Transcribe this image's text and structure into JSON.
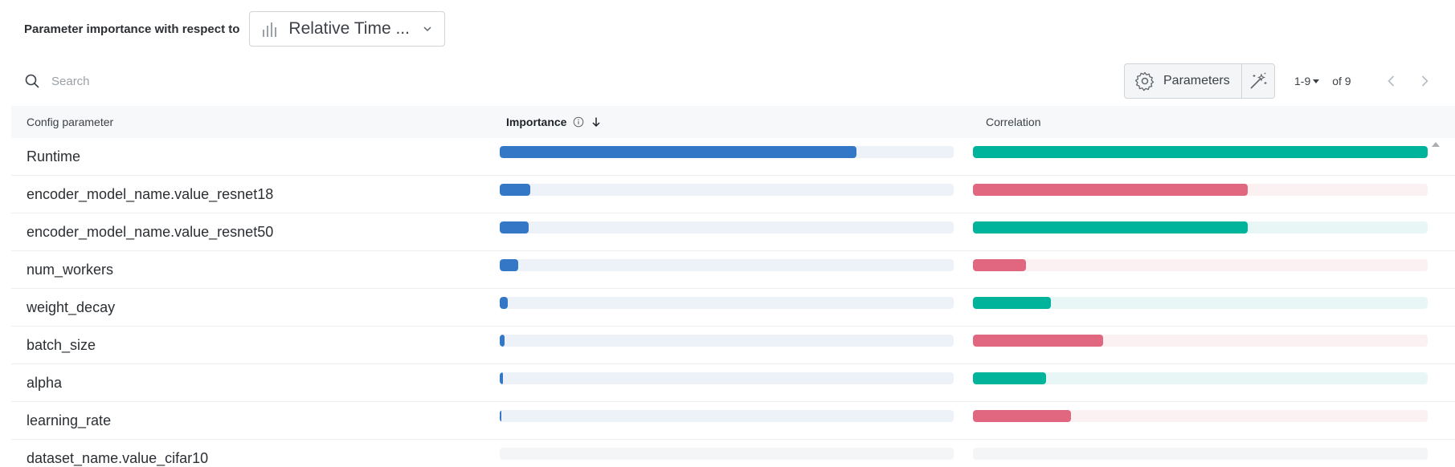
{
  "header": {
    "label": "Parameter importance with respect to",
    "metric_value": "Relative Time ..."
  },
  "toolbar": {
    "search_placeholder": "Search",
    "parameters_label": "Parameters",
    "page_range": "1-9",
    "page_of": "of 9"
  },
  "table": {
    "columns": {
      "config": "Config parameter",
      "importance": "Importance",
      "correlation": "Correlation"
    },
    "colors": {
      "importance_fill": "#3377c6",
      "importance_track": "#edf2f8",
      "positive_fill": "#00b39b",
      "positive_track": "#e8f7f5",
      "negative_fill": "#e0677f",
      "negative_track": "#fbf0f2",
      "empty_track": "#f4f5f6"
    },
    "rows": [
      {
        "name": "Runtime",
        "importance": 0.785,
        "correlation": 1.0,
        "sign": "positive"
      },
      {
        "name": "encoder_model_name.value_resnet18",
        "importance": 0.067,
        "correlation": 0.605,
        "sign": "negative"
      },
      {
        "name": "encoder_model_name.value_resnet50",
        "importance": 0.064,
        "correlation": 0.605,
        "sign": "positive"
      },
      {
        "name": "num_workers",
        "importance": 0.04,
        "correlation": 0.117,
        "sign": "negative"
      },
      {
        "name": "weight_decay",
        "importance": 0.018,
        "correlation": 0.171,
        "sign": "positive"
      },
      {
        "name": "batch_size",
        "importance": 0.01,
        "correlation": 0.286,
        "sign": "negative"
      },
      {
        "name": "alpha",
        "importance": 0.007,
        "correlation": 0.161,
        "sign": "positive"
      },
      {
        "name": "learning_rate",
        "importance": 0.003,
        "correlation": 0.216,
        "sign": "negative"
      },
      {
        "name": "dataset_name.value_cifar10",
        "importance": 0,
        "correlation": 0,
        "sign": "none"
      }
    ]
  }
}
